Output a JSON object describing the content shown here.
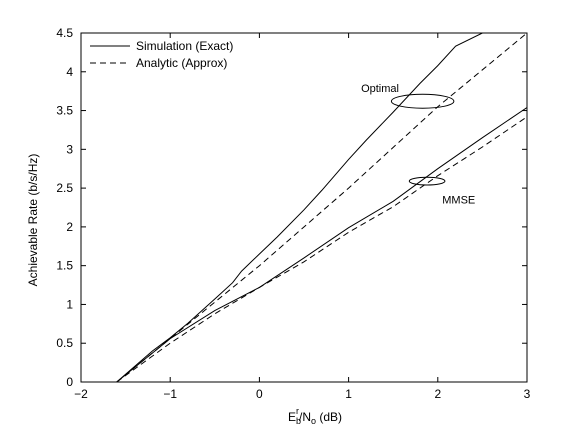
{
  "chart_data": {
    "type": "line",
    "xlabel": {
      "main": "E",
      "sub": "b",
      "sup": "r",
      "mid": "/N",
      "sub2": "o",
      "unit": " (dB)"
    },
    "ylabel": "Achievable Rate (b/s/Hz)",
    "xlim": [
      -2,
      3
    ],
    "ylim": [
      0,
      4.5
    ],
    "xticks": [
      "−2",
      "−1",
      "0",
      "1",
      "2",
      "3"
    ],
    "xtick_values": [
      -2,
      -1,
      0,
      1,
      2,
      3
    ],
    "yticks": [
      "0",
      "0.5",
      "1",
      "1.5",
      "2",
      "2.5",
      "3",
      "3.5",
      "4",
      "4.5"
    ],
    "ytick_values": [
      0,
      0.5,
      1,
      1.5,
      2,
      2.5,
      3,
      3.5,
      4,
      4.5
    ],
    "grid": false,
    "legend_position": "top-left",
    "legend": [
      {
        "label": "Simulation (Exact)",
        "style": "solid"
      },
      {
        "label": "Analytic (Approx)",
        "style": "dashed"
      }
    ],
    "series": [
      {
        "name": "Optimal - Simulation (Exact)",
        "style": "solid",
        "x": [
          -1.6,
          -1.2,
          -1.0,
          -0.8,
          -0.5,
          -0.3,
          -0.2,
          0.0,
          0.2,
          0.5,
          0.7,
          1.0,
          1.2,
          1.5,
          1.8,
          2.0,
          2.2,
          2.5
        ],
        "y": [
          0.0,
          0.4,
          0.57,
          0.76,
          1.07,
          1.28,
          1.43,
          1.65,
          1.87,
          2.22,
          2.47,
          2.87,
          3.12,
          3.48,
          3.85,
          4.08,
          4.33,
          4.5
        ]
      },
      {
        "name": "Optimal - Analytic (Approx)",
        "style": "dashed",
        "x": [
          -1.6,
          -1.0,
          0.0,
          1.0,
          2.0,
          3.0
        ],
        "y": [
          0.0,
          0.56,
          1.5,
          2.5,
          3.55,
          4.5
        ]
      },
      {
        "name": "MMSE - Simulation (Exact)",
        "style": "solid",
        "x": [
          -1.6,
          -1.0,
          -0.5,
          0.0,
          0.5,
          1.0,
          1.5,
          2.0,
          2.5,
          3.0
        ],
        "y": [
          0.0,
          0.56,
          0.92,
          1.22,
          1.6,
          1.99,
          2.33,
          2.75,
          3.15,
          3.54
        ]
      },
      {
        "name": "MMSE - Analytic (Approx)",
        "style": "dashed",
        "x": [
          -1.6,
          -1.0,
          -0.5,
          0.0,
          0.5,
          1.0,
          1.5,
          2.0,
          2.5,
          3.0
        ],
        "y": [
          0.0,
          0.5,
          0.88,
          1.22,
          1.55,
          1.93,
          2.26,
          2.66,
          3.03,
          3.42
        ]
      }
    ],
    "annotations": [
      {
        "label": "Optimal",
        "x": 1.14,
        "y": 3.74,
        "ellipse_center": [
          1.83,
          3.62
        ],
        "ellipse_rx": 0.35,
        "ellipse_ry": 0.09
      },
      {
        "label": "MMSE",
        "x": 2.05,
        "y": 2.3,
        "ellipse_center": [
          1.88,
          2.59
        ],
        "ellipse_rx": 0.2,
        "ellipse_ry": 0.05
      }
    ]
  }
}
